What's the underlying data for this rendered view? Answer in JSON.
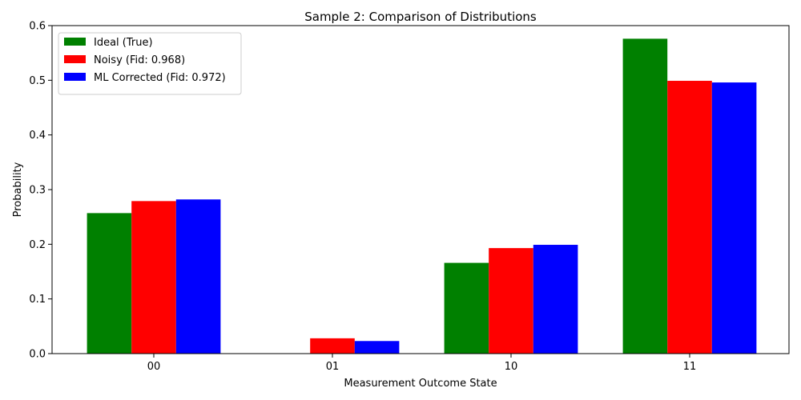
{
  "chart_data": {
    "type": "bar",
    "title": "Sample 2: Comparison of Distributions",
    "xlabel": "Measurement Outcome State",
    "ylabel": "Probability",
    "categories": [
      "00",
      "01",
      "10",
      "11"
    ],
    "ylim": [
      0,
      0.6
    ],
    "yticks": [
      "0.0",
      "0.1",
      "0.2",
      "0.3",
      "0.4",
      "0.5",
      "0.6"
    ],
    "legend_position": "top-left",
    "grid": false,
    "series": [
      {
        "name": "Ideal (True)",
        "color": "#008000",
        "values": [
          0.257,
          0.0,
          0.166,
          0.576
        ]
      },
      {
        "name": "Noisy (Fid: 0.968)",
        "color": "#ff0000",
        "values": [
          0.279,
          0.028,
          0.193,
          0.499
        ]
      },
      {
        "name": "ML Corrected (Fid: 0.972)",
        "color": "#0000ff",
        "values": [
          0.282,
          0.023,
          0.199,
          0.496
        ]
      }
    ]
  }
}
